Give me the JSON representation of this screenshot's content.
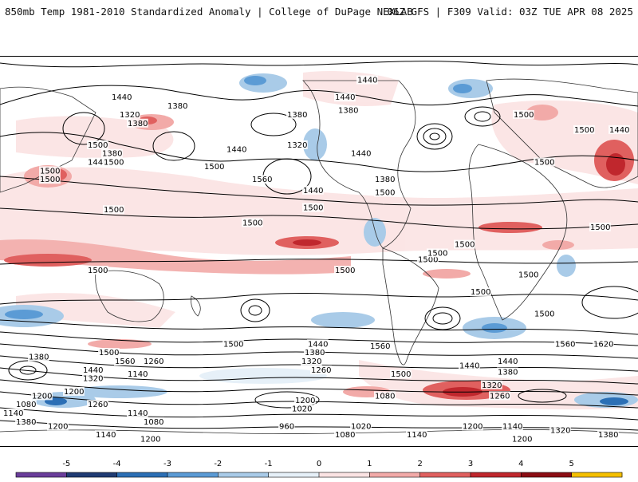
{
  "header": {
    "left_title": "850mb Temp 1981-2010 Standardized Anomaly | College of DuPage NEXLAB",
    "right_title": "06Z GFS | F309 Valid: 03Z TUE APR 08 2025"
  },
  "colorbar": {
    "ticks": [
      "-5",
      "-4",
      "-3",
      "-2",
      "-1",
      "0",
      "1",
      "2",
      "3",
      "4",
      "5"
    ],
    "colors": [
      "#6a3d9a",
      "#1f3b73",
      "#2c6fb5",
      "#5b9bd5",
      "#a9cbe8",
      "#e6f0f8",
      "#fbe3e3",
      "#f2aaa8",
      "#e0605f",
      "#c0272d",
      "#8b0d14",
      "#f5c000"
    ]
  },
  "contour_labels": [
    {
      "text": "1440",
      "lon": -170,
      "lat": 70
    },
    {
      "text": "1380",
      "lon": -135,
      "lat": 66
    },
    {
      "text": "1320",
      "lon": -165,
      "lat": 62
    },
    {
      "text": "1380",
      "lon": -160,
      "lat": 58
    },
    {
      "text": "1500",
      "lon": -185,
      "lat": 48
    },
    {
      "text": "1380",
      "lon": -176,
      "lat": 44
    },
    {
      "text": "1440",
      "lon": -185,
      "lat": 40
    },
    {
      "text": "1500",
      "lon": -175,
      "lat": 40
    },
    {
      "text": "1500",
      "lon": -215,
      "lat": 36
    },
    {
      "text": "1500",
      "lon": -215,
      "lat": 32
    },
    {
      "text": "1440",
      "lon": -98,
      "lat": 46
    },
    {
      "text": "1500",
      "lon": -112,
      "lat": 38
    },
    {
      "text": "1560",
      "lon": -82,
      "lat": 32
    },
    {
      "text": "1500",
      "lon": -175,
      "lat": 18
    },
    {
      "text": "1500",
      "lon": -185,
      "lat": -10
    },
    {
      "text": "1500",
      "lon": -178,
      "lat": -48
    },
    {
      "text": "1560",
      "lon": -168,
      "lat": -52
    },
    {
      "text": "1260",
      "lon": -150,
      "lat": -52
    },
    {
      "text": "1380",
      "lon": -222,
      "lat": -50
    },
    {
      "text": "1440",
      "lon": -188,
      "lat": -56
    },
    {
      "text": "1320",
      "lon": -188,
      "lat": -60
    },
    {
      "text": "1140",
      "lon": -160,
      "lat": -58
    },
    {
      "text": "1200",
      "lon": -200,
      "lat": -66
    },
    {
      "text": "1200",
      "lon": -220,
      "lat": -68
    },
    {
      "text": "1260",
      "lon": -185,
      "lat": -72
    },
    {
      "text": "1080",
      "lon": -230,
      "lat": -72
    },
    {
      "text": "1140",
      "lon": -160,
      "lat": -76
    },
    {
      "text": "1140",
      "lon": -238,
      "lat": -76
    },
    {
      "text": "1080",
      "lon": -150,
      "lat": -80
    },
    {
      "text": "1200",
      "lon": -210,
      "lat": -82
    },
    {
      "text": "1140",
      "lon": -180,
      "lat": -86
    },
    {
      "text": "1380",
      "lon": -230,
      "lat": -80
    },
    {
      "text": "1200",
      "lon": -152,
      "lat": -88
    },
    {
      "text": "1380",
      "lon": -60,
      "lat": 62
    },
    {
      "text": "1440",
      "lon": -16,
      "lat": 78
    },
    {
      "text": "1440",
      "lon": -30,
      "lat": 70
    },
    {
      "text": "1380",
      "lon": -28,
      "lat": 64
    },
    {
      "text": "1320",
      "lon": -60,
      "lat": 48
    },
    {
      "text": "1440",
      "lon": -20,
      "lat": 44
    },
    {
      "text": "1380",
      "lon": -5,
      "lat": 32
    },
    {
      "text": "1500",
      "lon": -5,
      "lat": 26
    },
    {
      "text": "1440",
      "lon": -50,
      "lat": 27
    },
    {
      "text": "1500",
      "lon": -50,
      "lat": 19
    },
    {
      "text": "1500",
      "lon": -88,
      "lat": 12
    },
    {
      "text": "1500",
      "lon": -30,
      "lat": -10
    },
    {
      "text": "1500",
      "lon": -100,
      "lat": -44
    },
    {
      "text": "1440",
      "lon": -47,
      "lat": -44
    },
    {
      "text": "1380",
      "lon": -49,
      "lat": -48
    },
    {
      "text": "1320",
      "lon": -51,
      "lat": -52
    },
    {
      "text": "1260",
      "lon": -45,
      "lat": -56
    },
    {
      "text": "1560",
      "lon": -8,
      "lat": -45
    },
    {
      "text": "1500",
      "lon": 5,
      "lat": -58
    },
    {
      "text": "1200",
      "lon": -55,
      "lat": -70
    },
    {
      "text": "1080",
      "lon": -5,
      "lat": -68
    },
    {
      "text": "1020",
      "lon": -57,
      "lat": -74
    },
    {
      "text": "960",
      "lon": -65,
      "lat": -82
    },
    {
      "text": "1080",
      "lon": -30,
      "lat": -86
    },
    {
      "text": "1020",
      "lon": -20,
      "lat": -82
    },
    {
      "text": "1140",
      "lon": 15,
      "lat": -86
    },
    {
      "text": "1200",
      "lon": -45,
      "lat": -90
    },
    {
      "text": "1500",
      "lon": 45,
      "lat": 2
    },
    {
      "text": "1500",
      "lon": 22,
      "lat": -5
    },
    {
      "text": "1500",
      "lon": 28,
      "lat": -2
    },
    {
      "text": "1500",
      "lon": 55,
      "lat": -20
    },
    {
      "text": "1440",
      "lon": 48,
      "lat": -54
    },
    {
      "text": "1500",
      "lon": 82,
      "lat": 62
    },
    {
      "text": "1500",
      "lon": 95,
      "lat": 40
    },
    {
      "text": "1440",
      "lon": 72,
      "lat": -52
    },
    {
      "text": "1380",
      "lon": 72,
      "lat": -57
    },
    {
      "text": "1320",
      "lon": 62,
      "lat": -63
    },
    {
      "text": "1260",
      "lon": 67,
      "lat": -68
    },
    {
      "text": "1560",
      "lon": 108,
      "lat": -44
    },
    {
      "text": "1500",
      "lon": 95,
      "lat": -30
    },
    {
      "text": "1620",
      "lon": 132,
      "lat": -44
    },
    {
      "text": "1500",
      "lon": 130,
      "lat": 10
    },
    {
      "text": "1500",
      "lon": 120,
      "lat": 55
    },
    {
      "text": "1440",
      "lon": 142,
      "lat": 55
    },
    {
      "text": "1500",
      "lon": 85,
      "lat": -12
    },
    {
      "text": "1200",
      "lon": 50,
      "lat": -82
    },
    {
      "text": "1140",
      "lon": 75,
      "lat": -82
    },
    {
      "text": "1320",
      "lon": 105,
      "lat": -84
    },
    {
      "text": "1380",
      "lon": 135,
      "lat": -86
    },
    {
      "text": "1200",
      "lon": 81,
      "lat": -88
    },
    {
      "text": "1260",
      "lon": 100,
      "lat": -90
    },
    {
      "text": "1200",
      "lon": 58,
      "lat": -92
    },
    {
      "text": "1140",
      "lon": -2,
      "lat": -92
    }
  ]
}
